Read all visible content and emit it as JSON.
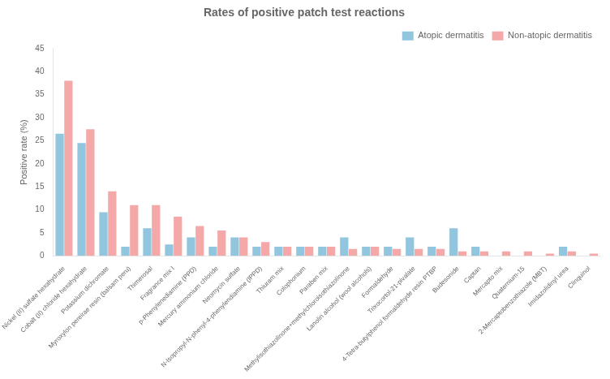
{
  "chart_data": {
    "type": "bar",
    "title": "Rates of positive patch test reactions",
    "ylabel": "Positive rate (%)",
    "categories": [
      "Nickel (II) sulfate hexahydrate",
      "Cobalt (II) chloride hexahydrate",
      "Potassium dichromate",
      "Myroxylon pereirae resin (balsam peru)",
      "Thimerosal",
      "Fragrance mix I",
      "p-Phenylenediamine (PPD)",
      "Mercury ammonium chloride",
      "Neomycin sulfate",
      "N-Isopropyl-N-phenyl-4-phenylendiamine (IPPD)",
      "Thiuram mix",
      "Colophonium",
      "Paraben mix",
      "Methylisothiazolinone+methylchloroisothiazolinone",
      "Lanolin alcohol (wool alcohols)",
      "Formaldehyde",
      "Trixocortol-21-pivalate",
      "4-Tetra-butylphenol formaldehyde resin PTBP",
      "Budesonide",
      "Captan",
      "Mercapto mix",
      "Quaternium-15",
      "2-Mercaptobenzothiazole (MBT)",
      "Imidazolidinyl urea",
      "Clinquinol"
    ],
    "series": [
      {
        "name": "Atopic dermatitis",
        "color": "#92C5DE",
        "values": [
          26.5,
          24.5,
          9.5,
          2.0,
          6.0,
          2.5,
          4.0,
          2.0,
          4.0,
          2.0,
          2.0,
          2.0,
          2.0,
          4.0,
          2.0,
          2.0,
          4.0,
          2.0,
          6.0,
          2.0,
          0.0,
          0.0,
          0.0,
          2.0,
          0.0
        ]
      },
      {
        "name": "Non-atopic dermatitis",
        "color": "#F4A9A8",
        "values": [
          38.0,
          27.5,
          14.0,
          11.0,
          11.0,
          8.5,
          6.5,
          5.5,
          4.0,
          3.0,
          2.0,
          2.0,
          2.0,
          1.5,
          2.0,
          1.5,
          1.5,
          1.5,
          1.0,
          1.0,
          1.0,
          1.0,
          0.5,
          1.0,
          0.5
        ]
      }
    ],
    "ylim": [
      0,
      45
    ],
    "yticks": [
      0,
      5,
      10,
      15,
      20,
      25,
      30,
      35,
      40,
      45
    ],
    "grid": false,
    "legend": "upper right"
  }
}
